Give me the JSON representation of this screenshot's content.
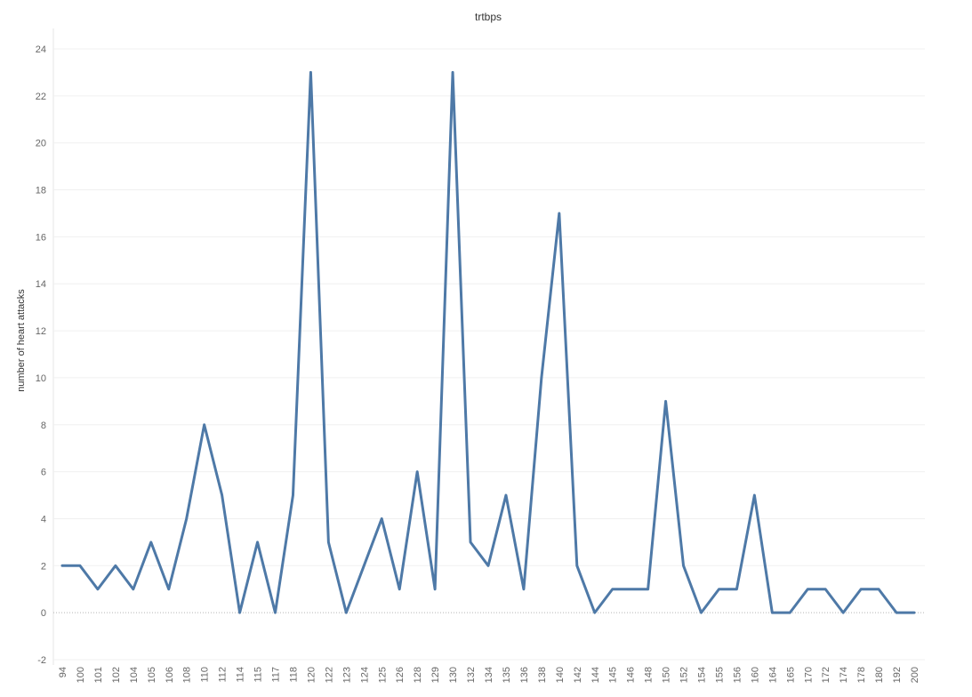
{
  "chart_data": {
    "type": "line",
    "title": "trtbps",
    "xlabel": "",
    "ylabel": "number of heart attacks",
    "ylim": [
      -2,
      24
    ],
    "yticks": [
      -2,
      0,
      2,
      4,
      6,
      8,
      10,
      12,
      14,
      16,
      18,
      20,
      22,
      24
    ],
    "grid": true,
    "legend": "none",
    "line_color": "#4e79a7",
    "categories": [
      "94",
      "100",
      "101",
      "102",
      "104",
      "105",
      "106",
      "108",
      "110",
      "112",
      "114",
      "115",
      "117",
      "118",
      "120",
      "122",
      "123",
      "124",
      "125",
      "126",
      "128",
      "129",
      "130",
      "132",
      "134",
      "135",
      "136",
      "138",
      "140",
      "142",
      "144",
      "145",
      "146",
      "148",
      "150",
      "152",
      "154",
      "155",
      "156",
      "160",
      "164",
      "165",
      "170",
      "172",
      "174",
      "178",
      "180",
      "192",
      "200"
    ],
    "series": [
      {
        "values": [
          2,
          2,
          1,
          2,
          1,
          3,
          1,
          4,
          8,
          5,
          0,
          3,
          0,
          5,
          23,
          3,
          0,
          2,
          4,
          1,
          6,
          1,
          23,
          3,
          2,
          5,
          1,
          10,
          17,
          2,
          0,
          1,
          1,
          1,
          9,
          2,
          0,
          1,
          1,
          5,
          0,
          0,
          1,
          1,
          0,
          1,
          1,
          0,
          0
        ]
      }
    ]
  }
}
